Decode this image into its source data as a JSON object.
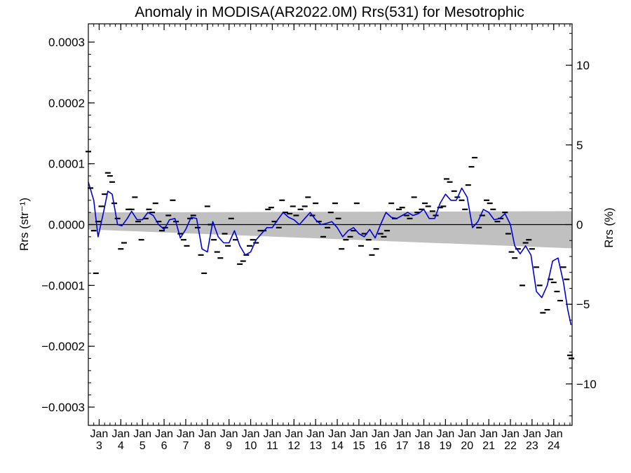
{
  "chart_data": {
    "type": "scatter",
    "title": "Anomaly in MODISA(AR2022.0M) Rrs(531) for Mesotrophic",
    "ylabel_left": "Rrs (str⁻¹)",
    "ylabel_right": "Rrs (%)",
    "xlim": [
      2002.5,
      2024.85
    ],
    "ylim": [
      -0.00033,
      0.00033
    ],
    "ylim_right_percent": [
      -12.6,
      12.6
    ],
    "y_ticks": [
      "0.0003",
      "0.0002",
      "0.0001",
      "0.0000",
      "−0.0001",
      "−0.0002",
      "−0.0003"
    ],
    "y_tick_values": [
      0.0003,
      0.0002,
      0.0001,
      0,
      -0.0001,
      -0.0002,
      -0.0003
    ],
    "y_ticks_right": [
      "10",
      "5",
      "0",
      "−5",
      "−10"
    ],
    "y_tick_values_right": [
      10,
      5,
      0,
      -5,
      -10
    ],
    "x_ticks": [
      {
        "month": "Jan",
        "year": "3",
        "value": 2003
      },
      {
        "month": "Jan",
        "year": "4",
        "value": 2004
      },
      {
        "month": "Jan",
        "year": "5",
        "value": 2005
      },
      {
        "month": "Jan",
        "year": "6",
        "value": 2006
      },
      {
        "month": "Jan",
        "year": "7",
        "value": 2007
      },
      {
        "month": "Jan",
        "year": "8",
        "value": 2008
      },
      {
        "month": "Jan",
        "year": "9",
        "value": 2009
      },
      {
        "month": "Jan",
        "year": "10",
        "value": 2010
      },
      {
        "month": "Jan",
        "year": "11",
        "value": 2011
      },
      {
        "month": "Jan",
        "year": "12",
        "value": 2012
      },
      {
        "month": "Jan",
        "year": "13",
        "value": 2013
      },
      {
        "month": "Jan",
        "year": "14",
        "value": 2014
      },
      {
        "month": "Jan",
        "year": "15",
        "value": 2015
      },
      {
        "month": "Jan",
        "year": "16",
        "value": 2016
      },
      {
        "month": "Jan",
        "year": "17",
        "value": 2017
      },
      {
        "month": "Jan",
        "year": "18",
        "value": 2018
      },
      {
        "month": "Jan",
        "year": "19",
        "value": 2019
      },
      {
        "month": "Jan",
        "year": "20",
        "value": 2020
      },
      {
        "month": "Jan",
        "year": "21",
        "value": 2021
      },
      {
        "month": "Jan",
        "year": "22",
        "value": 2022
      },
      {
        "month": "Jan",
        "year": "23",
        "value": 2023
      },
      {
        "month": "Jan",
        "year": "24",
        "value": 2024
      }
    ],
    "zero_line": 0,
    "uncertainty_band": {
      "x": [
        2002.5,
        2024.85
      ],
      "upper": [
        2e-05,
        2.2e-05
      ],
      "lower": [
        -8e-06,
        -3.9e-05
      ],
      "color": "#c0c0c0"
    },
    "smoothed_line": {
      "color": "#0000dd",
      "x": [
        2002.5,
        2002.75,
        2002.95,
        2003.2,
        2003.4,
        2003.6,
        2003.85,
        2004.05,
        2004.3,
        2004.5,
        2004.75,
        2005.0,
        2005.25,
        2005.5,
        2005.75,
        2006.0,
        2006.25,
        2006.5,
        2006.75,
        2007.0,
        2007.25,
        2007.5,
        2007.75,
        2008.0,
        2008.25,
        2008.5,
        2008.75,
        2009.0,
        2009.25,
        2009.5,
        2009.75,
        2010.0,
        2010.25,
        2010.5,
        2010.75,
        2011.0,
        2011.25,
        2011.5,
        2011.75,
        2012.0,
        2012.25,
        2012.5,
        2012.75,
        2013.0,
        2013.25,
        2013.5,
        2013.75,
        2014.0,
        2014.25,
        2014.5,
        2014.75,
        2015.0,
        2015.25,
        2015.5,
        2015.75,
        2016.0,
        2016.25,
        2016.5,
        2016.75,
        2017.0,
        2017.25,
        2017.5,
        2017.75,
        2018.0,
        2018.25,
        2018.5,
        2018.75,
        2019.0,
        2019.25,
        2019.5,
        2019.75,
        2020.0,
        2020.25,
        2020.5,
        2020.75,
        2021.0,
        2021.25,
        2021.5,
        2021.75,
        2022.0,
        2022.2,
        2022.45,
        2022.7,
        2022.95,
        2023.2,
        2023.45,
        2023.7,
        2023.95,
        2024.2,
        2024.45,
        2024.65,
        2024.8
      ],
      "y": [
        7e-05,
        4e-05,
        -2e-05,
        2e-05,
        5.5e-05,
        5e-05,
        0.0,
        -2e-06,
        1e-05,
        2.2e-05,
        8e-06,
        8e-06,
        2e-05,
        1.5e-05,
        0.0,
        -8e-06,
        8e-06,
        1e-05,
        -2.2e-05,
        -8e-06,
        1.2e-05,
        1e-05,
        -4e-05,
        -4.5e-05,
        5e-06,
        -2e-05,
        -3e-05,
        -3e-05,
        -1e-05,
        -3.5e-05,
        -5e-05,
        -4.5e-05,
        -2.5e-05,
        -1.5e-05,
        -5e-06,
        -5e-06,
        8e-06,
        2e-05,
        1.2e-05,
        8e-06,
        0.0,
        1e-05,
        2e-05,
        8e-06,
        0.0,
        2e-06,
        5e-06,
        -5e-06,
        -2e-05,
        -1e-05,
        -5e-06,
        -1.5e-05,
        -2e-05,
        -8e-06,
        -2.2e-05,
        0.0,
        2e-05,
        1.2e-05,
        1e-05,
        1.5e-05,
        2e-05,
        1.5e-05,
        1.8e-05,
        2.5e-05,
        1e-05,
        1e-05,
        3.5e-05,
        5e-05,
        4e-05,
        4e-05,
        6e-05,
        4.5e-05,
        -5e-06,
        5e-06,
        2.5e-05,
        2e-05,
        8e-06,
        1e-05,
        1.8e-05,
        0.0,
        -3.5e-05,
        -4.8e-05,
        -3.5e-05,
        -5e-05,
        -0.00011,
        -0.00012,
        -0.0001,
        -6e-05,
        -5.5e-05,
        -9.5e-05,
        -0.00014,
        -0.000165
      ]
    },
    "points": {
      "x": [
        2002.5,
        2002.6,
        2002.75,
        2002.85,
        2002.95,
        2003.1,
        2003.25,
        2003.4,
        2003.5,
        2003.6,
        2003.7,
        2003.85,
        2004.0,
        2004.15,
        2004.35,
        2004.5,
        2004.65,
        2004.8,
        2004.95,
        2005.15,
        2005.3,
        2005.45,
        2005.6,
        2005.75,
        2005.9,
        2006.05,
        2006.2,
        2006.4,
        2006.55,
        2006.75,
        2006.9,
        2007.05,
        2007.2,
        2007.35,
        2007.55,
        2007.7,
        2007.85,
        2008.0,
        2008.15,
        2008.3,
        2008.45,
        2008.6,
        2008.8,
        2008.95,
        2009.1,
        2009.3,
        2009.5,
        2009.65,
        2009.8,
        2009.95,
        2010.1,
        2010.25,
        2010.45,
        2010.6,
        2010.8,
        2010.95,
        2011.1,
        2011.3,
        2011.45,
        2011.6,
        2011.8,
        2011.95,
        2012.1,
        2012.3,
        2012.5,
        2012.65,
        2012.85,
        2013.0,
        2013.15,
        2013.35,
        2013.55,
        2013.7,
        2013.9,
        2014.05,
        2014.2,
        2014.4,
        2014.6,
        2014.75,
        2014.9,
        2015.1,
        2015.25,
        2015.45,
        2015.6,
        2015.8,
        2016.0,
        2016.15,
        2016.3,
        2016.5,
        2016.65,
        2016.85,
        2017.0,
        2017.2,
        2017.35,
        2017.55,
        2017.7,
        2017.9,
        2018.05,
        2018.2,
        2018.4,
        2018.55,
        2018.75,
        2018.9,
        2019.05,
        2019.2,
        2019.4,
        2019.55,
        2019.75,
        2019.9,
        2020.05,
        2020.2,
        2020.35,
        2020.55,
        2020.7,
        2020.9,
        2021.05,
        2021.2,
        2021.4,
        2021.55,
        2021.75,
        2021.9,
        2022.05,
        2022.2,
        2022.35,
        2022.55,
        2022.7,
        2022.85,
        2023.0,
        2023.2,
        2023.35,
        2023.5,
        2023.7,
        2023.85,
        2024.0,
        2024.15,
        2024.3,
        2024.45,
        2024.6,
        2024.75,
        2024.82
      ],
      "y": [
        0.00012,
        6e-05,
        -1e-05,
        -8e-05,
        5e-06,
        3e-05,
        5e-05,
        8.5e-05,
        8e-05,
        7e-05,
        3.5e-05,
        1e-05,
        -4e-05,
        -3e-05,
        2.5e-05,
        2.5e-05,
        4.5e-05,
        5e-06,
        -2.5e-05,
        1e-05,
        2.5e-05,
        2e-05,
        3.5e-05,
        5e-06,
        -1e-05,
        -5e-06,
        1.5e-05,
        4e-05,
        5e-06,
        -1.5e-05,
        -2.5e-05,
        -3.5e-05,
        1e-05,
        1.5e-05,
        -5e-06,
        -5e-05,
        -8e-05,
        3e-05,
        0.0,
        -2.5e-05,
        -4.5e-05,
        -5.5e-05,
        -1.5e-05,
        -3.5e-05,
        1e-05,
        -2.5e-05,
        -6.5e-05,
        -6e-05,
        -5e-05,
        -3.5e-05,
        -2.5e-05,
        -3e-05,
        -1e-05,
        -1e-05,
        2.5e-05,
        2.8e-05,
        5e-06,
        -5e-06,
        4e-05,
        2e-05,
        1.8e-05,
        3e-05,
        1.5e-05,
        2.5e-05,
        3e-05,
        4.5e-05,
        1.5e-05,
        3.5e-05,
        5e-06,
        -2e-05,
        -5e-06,
        2e-05,
        3.5e-05,
        1e-05,
        -4e-05,
        -2.5e-05,
        -2e-05,
        -1e-05,
        3.5e-05,
        -3.5e-05,
        -1.5e-05,
        -2.5e-05,
        -5e-05,
        -4e-05,
        -1.5e-05,
        -2e-05,
        -1e-05,
        3.5e-05,
        1e-05,
        2.5e-05,
        2.8e-05,
        1.5e-05,
        1e-05,
        4.5e-05,
        2e-05,
        2.5e-05,
        3.5e-05,
        3e-05,
        2.2e-05,
        1.5e-05,
        2.8e-05,
        3e-05,
        7.5e-05,
        7e-05,
        5.5e-05,
        4.5e-05,
        4e-05,
        2.5e-05,
        6.5e-05,
        9.5e-05,
        0.00011,
        -5e-06,
        1.5e-05,
        4e-05,
        3.5e-05,
        2.5e-05,
        5e-06,
        1e-05,
        2e-05,
        -1.5e-05,
        -4.5e-05,
        -5.5e-05,
        -4e-05,
        -0.0001,
        -3e-05,
        -2.5e-05,
        -4e-05,
        -7e-05,
        -0.0001,
        -0.000145,
        -0.00014,
        -9e-05,
        -9.5e-05,
        -0.00011,
        -0.000125,
        -7e-05,
        -9e-05,
        -0.000215,
        -0.00022
      ]
    }
  }
}
